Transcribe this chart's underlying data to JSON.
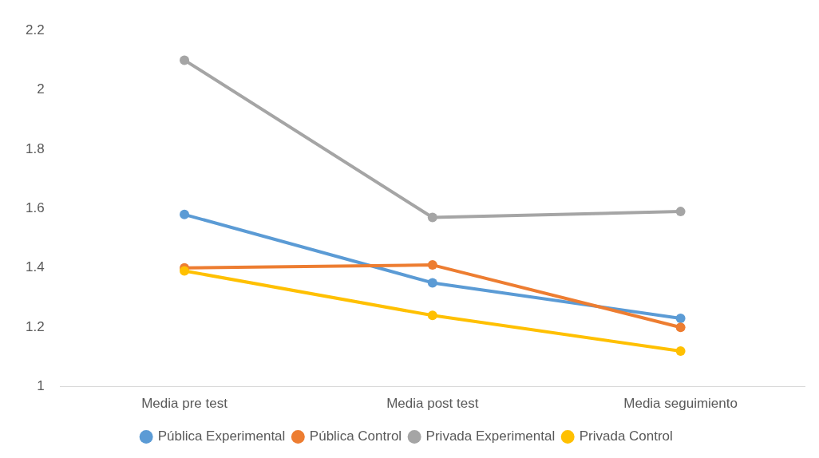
{
  "chart_data": {
    "type": "line",
    "categories": [
      "Media pre test",
      "Media post test",
      "Media seguimiento"
    ],
    "series": [
      {
        "name": "Pública Experimental",
        "color": "#5b9bd5",
        "values": [
          1.58,
          1.35,
          1.23
        ]
      },
      {
        "name": "Pública Control",
        "color": "#ed7d31",
        "values": [
          1.4,
          1.41,
          1.2
        ]
      },
      {
        "name": "Privada Experimental",
        "color": "#a5a5a5",
        "values": [
          2.1,
          1.57,
          1.59
        ]
      },
      {
        "name": "Privada Control",
        "color": "#ffc000",
        "values": [
          1.39,
          1.24,
          1.12
        ]
      }
    ],
    "ylim": [
      1,
      2.2
    ],
    "yticks": [
      1,
      1.2,
      1.4,
      1.6,
      1.8,
      2,
      2.2
    ],
    "grid": false,
    "legend": "bottom",
    "marker": "circle",
    "line_style": "solid"
  }
}
